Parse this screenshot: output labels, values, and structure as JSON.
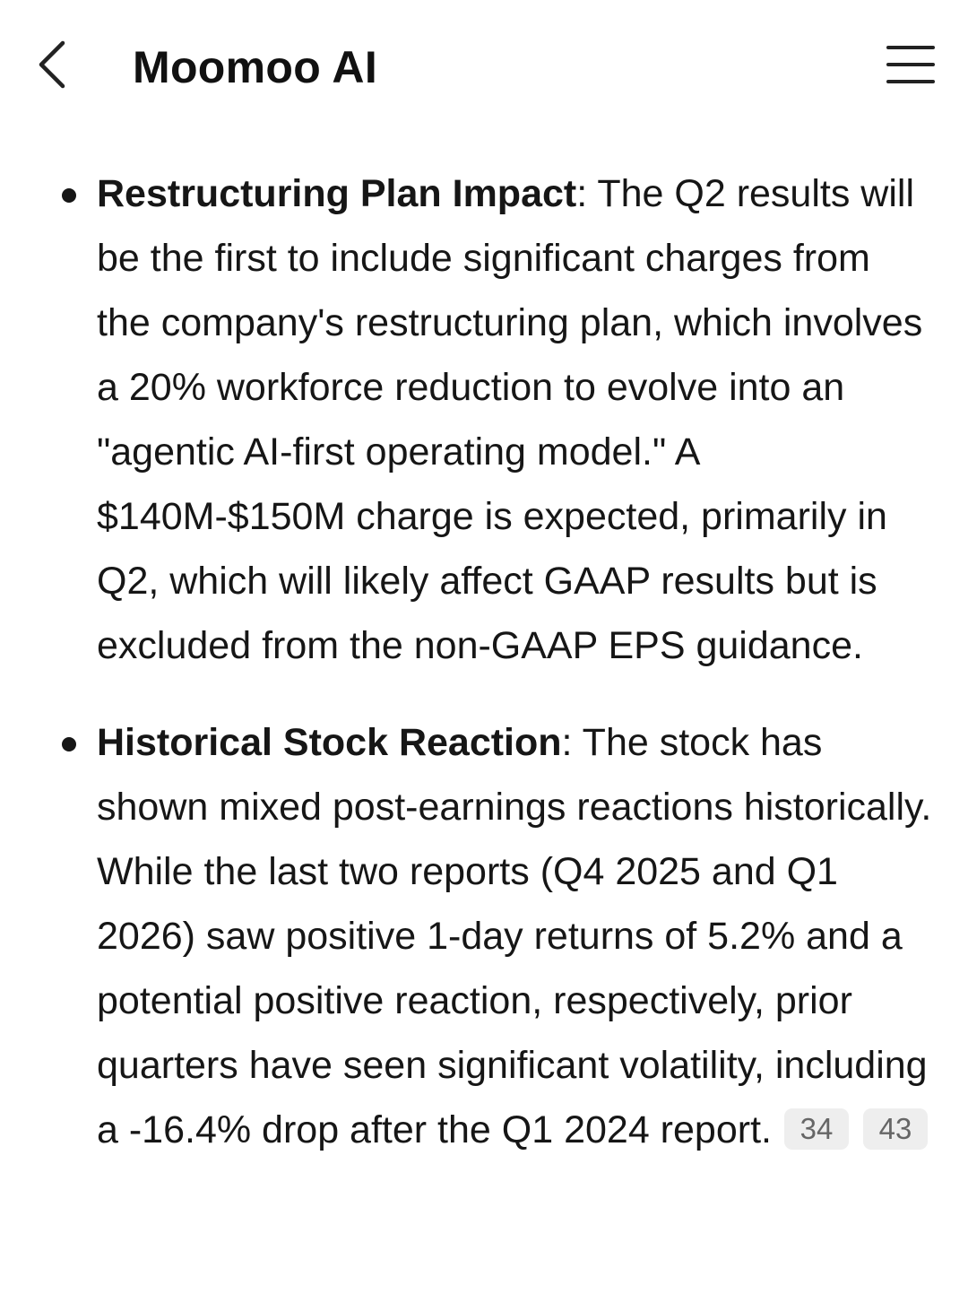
{
  "header": {
    "title": "Moomoo AI",
    "back_icon": "chevron-left-icon",
    "menu_icon": "hamburger-menu-icon"
  },
  "bullets": [
    {
      "title": "Restructuring Plan Impact",
      "separator": ": ",
      "text": "The Q2 results will be the first to include significant charges from the company's restructuring plan, which involves a 20% workforce reduction to evolve into an \"agentic AI-first operating model.\" A $140M-$150M charge is expected, primarily in Q2, which will likely affect GAAP results but is excluded from the non-GAAP EPS guidance."
    },
    {
      "title": "Historical Stock Reaction",
      "separator": ": ",
      "text": "The stock has shown mixed post-earnings reactions historically. While the last two reports (Q4 2025 and Q1 2026) saw positive 1-day returns of 5.2% and a potential positive reaction, respectively, prior quarters have seen significant volatility, including a -16.4% drop after the Q1 2024 report.",
      "citations": [
        "34",
        "43"
      ]
    }
  ],
  "colors": {
    "text": "#161616",
    "citation_bg": "#eeeeee",
    "citation_text": "#666666"
  }
}
